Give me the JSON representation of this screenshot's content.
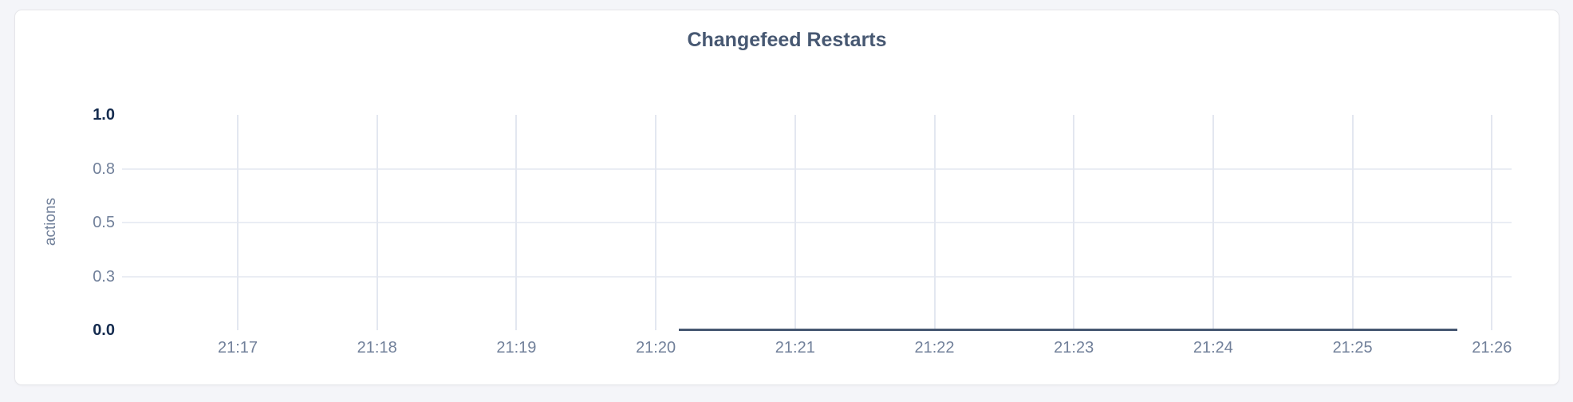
{
  "page": {
    "background": "#f4f5f9"
  },
  "card": {
    "background": "#ffffff",
    "border_color": "#e5e6ea"
  },
  "chart_data": {
    "type": "line",
    "title": "Changefeed Restarts",
    "xlabel": "",
    "ylabel": "actions",
    "ylim": [
      0.0,
      1.0
    ],
    "grid": true,
    "legend": false,
    "y_ticks": [
      {
        "label": "1.0",
        "value": 1.0,
        "emphasis": true
      },
      {
        "label": "0.8",
        "value": 0.75,
        "emphasis": false
      },
      {
        "label": "0.5",
        "value": 0.5,
        "emphasis": false
      },
      {
        "label": "0.3",
        "value": 0.25,
        "emphasis": false
      },
      {
        "label": "0.0",
        "value": 0.0,
        "emphasis": true
      }
    ],
    "x_ticks": [
      "21:17",
      "21:18",
      "21:19",
      "21:20",
      "21:21",
      "21:22",
      "21:23",
      "21:24",
      "21:25",
      "21:26"
    ],
    "series": [
      {
        "name": "Changefeed Restarts",
        "unit": "actions",
        "color": "#475872",
        "points": [
          {
            "time": "21:20:10",
            "value": 0
          },
          {
            "time": "21:25:45",
            "value": 0
          }
        ]
      }
    ],
    "colors": {
      "title": "#475872",
      "axis_label": "#71809a",
      "tick_emphasis": "#152c4f",
      "grid_horizontal": "#eaedf4",
      "grid_vertical": "#e3e7f0"
    }
  }
}
